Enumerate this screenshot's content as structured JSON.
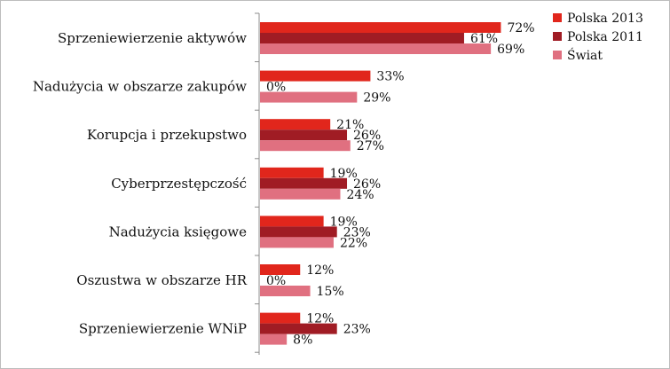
{
  "chart_data": {
    "type": "bar",
    "orientation": "horizontal",
    "categories": [
      "Sprzeniewierzenie aktywów",
      "Nadużycia w obszarze zakupów",
      "Korupcja i przekupstwo",
      "Cyberprzestępczość",
      "Nadużycia księgowe",
      "Oszustwa w obszarze HR",
      "Sprzeniewierzenie WNiP"
    ],
    "series": [
      {
        "name": "Polska 2013",
        "color": "#e1261c",
        "values": [
          72,
          33,
          21,
          19,
          19,
          12,
          12
        ]
      },
      {
        "name": "Polska 2011",
        "color": "#a01c24",
        "values": [
          61,
          0,
          26,
          26,
          23,
          0,
          23
        ]
      },
      {
        "name": "Świat",
        "color": "#e07080",
        "values": [
          69,
          29,
          27,
          24,
          22,
          15,
          8
        ]
      }
    ],
    "value_suffix": "%",
    "xlim": [
      0,
      100
    ],
    "grid": false,
    "legend_position": "top-right"
  }
}
